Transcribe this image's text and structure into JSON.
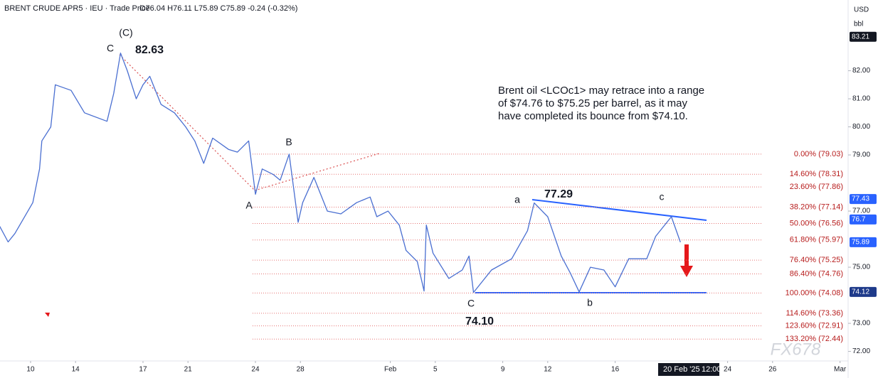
{
  "chart_data": {
    "type": "line",
    "title": "BRENT CRUDE APR5 · IEU · Trade Price",
    "ohlc": "O76.04 H76.11 L75.89 C75.89 -0.24 (-0.32%)",
    "currency": "USD",
    "unit": "bbl",
    "color": "#4a6fd1",
    "x": [
      -1.4,
      -1.0,
      -0.7,
      0.1,
      0.4,
      0.5,
      0.9,
      1.1,
      1.8,
      2.4,
      3.4,
      3.7,
      4.0,
      4.3,
      4.7,
      5.0,
      5.3,
      5.8,
      6.4,
      6.9,
      7.3,
      7.7,
      8.1,
      8.8,
      9.2,
      9.7,
      10.0,
      10.3,
      10.8,
      11.1,
      11.5,
      11.9,
      12.1,
      12.6,
      13.2,
      13.8,
      14.5,
      15.1,
      15.4,
      15.9,
      16.4,
      16.7,
      17.2,
      17.5,
      17.6,
      17.9,
      18.6,
      19.2,
      19.5,
      19.7,
      20.5,
      21.4,
      22.1,
      22.4,
      23.0,
      23.6,
      24.0,
      24.4,
      24.9,
      25.5,
      26.0,
      26.6,
      27.4,
      27.8,
      28.5,
      28.9
    ],
    "values": [
      76.5,
      75.9,
      76.2,
      77.3,
      78.5,
      79.5,
      80.0,
      81.5,
      81.3,
      80.5,
      80.2,
      81.2,
      82.63,
      82.0,
      81.0,
      81.5,
      81.8,
      80.8,
      80.5,
      80.0,
      79.5,
      78.7,
      79.6,
      79.2,
      79.1,
      79.5,
      77.6,
      78.5,
      78.3,
      78.1,
      79.03,
      76.6,
      77.3,
      78.2,
      77.0,
      76.9,
      77.3,
      77.5,
      76.8,
      77.0,
      76.5,
      75.6,
      75.2,
      74.15,
      76.5,
      75.5,
      74.6,
      74.9,
      75.4,
      74.1,
      74.9,
      75.3,
      76.3,
      77.29,
      76.8,
      75.4,
      74.8,
      74.12,
      75.0,
      74.9,
      74.3,
      75.3,
      75.3,
      76.1,
      76.8,
      75.89
    ],
    "xlim": [
      -1.36,
      36.36
    ],
    "xticks": [
      {
        "value": 0,
        "label": "10"
      },
      {
        "value": 2,
        "label": "14"
      },
      {
        "value": 5,
        "label": "17"
      },
      {
        "value": 7,
        "label": "21"
      },
      {
        "value": 10,
        "label": "24"
      },
      {
        "value": 12,
        "label": "28"
      },
      {
        "value": 16,
        "label": "Feb"
      },
      {
        "value": 18,
        "label": "5"
      },
      {
        "value": 21,
        "label": "9"
      },
      {
        "value": 23,
        "label": "12"
      },
      {
        "value": 26,
        "label": "16"
      },
      {
        "value": 31,
        "label": "24"
      },
      {
        "value": 33,
        "label": "26"
      },
      {
        "value": 36,
        "label": "Mar"
      }
    ],
    "ylim": [
      71.66,
      84.52
    ],
    "yticks": [
      {
        "value": 82,
        "label": "82.00"
      },
      {
        "value": 81,
        "label": "81.00"
      },
      {
        "value": 80,
        "label": "80.00"
      },
      {
        "value": 79,
        "label": "79.00"
      },
      {
        "value": 77,
        "label": "77.00"
      },
      {
        "value": 75,
        "label": "75.00"
      },
      {
        "value": 73,
        "label": "73.00"
      },
      {
        "value": 72,
        "label": "72.00"
      }
    ],
    "grid": false,
    "fib_levels": [
      {
        "value": 79.03,
        "label": "0.00% (79.03)"
      },
      {
        "value": 78.31,
        "label": "14.60% (78.31)"
      },
      {
        "value": 77.86,
        "label": "23.60% (77.86)"
      },
      {
        "value": 77.14,
        "label": "38.20% (77.14)"
      },
      {
        "value": 76.56,
        "label": "50.00% (76.56)"
      },
      {
        "value": 75.97,
        "label": "61.80% (75.97)"
      },
      {
        "value": 75.25,
        "label": "76.40% (75.25)"
      },
      {
        "value": 74.76,
        "label": "86.40% (74.76)"
      },
      {
        "value": 74.08,
        "label": "100.00% (74.08)"
      },
      {
        "value": 73.36,
        "label": "114.60% (73.36)"
      },
      {
        "value": 72.91,
        "label": "123.60% (72.91)"
      },
      {
        "value": 72.44,
        "label": "133.20% (72.44)"
      }
    ],
    "price_tags": [
      {
        "value": 83.21,
        "color": "#131722"
      },
      {
        "value": 77.43,
        "color": "#2962ff"
      },
      {
        "value": 76.7,
        "color": "#2962ff"
      },
      {
        "value": 75.89,
        "color": "#2962ff"
      },
      {
        "value": 74.12,
        "color": "#1e3a8a"
      }
    ],
    "annotations": [
      "(C)",
      "C",
      "82.63",
      "A",
      "B",
      "C",
      "74.10",
      "a",
      "77.29",
      "b",
      "c"
    ],
    "commentary": [
      "Brent oil <LCOc1> may retrace into a range",
      "of $74.76 to $75.25 per barrel, as it may",
      "have completed its bounce from $74.10."
    ],
    "crosshair_date": "20 Feb '25",
    "crosshair_time": "12:00",
    "watermark": "FX678"
  }
}
